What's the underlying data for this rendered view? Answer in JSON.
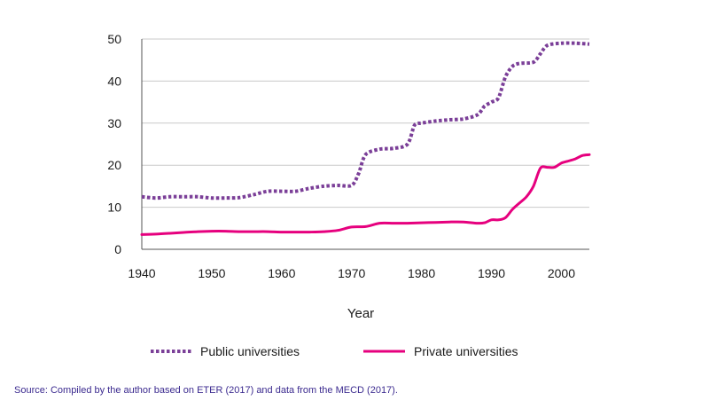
{
  "chart_data": {
    "type": "line",
    "title": "",
    "xlabel": "Year",
    "ylabel": "",
    "xlim": [
      1940,
      2004
    ],
    "ylim": [
      0,
      50
    ],
    "x_ticks": [
      1940,
      1950,
      1960,
      1970,
      1980,
      1990,
      2000
    ],
    "y_ticks": [
      0,
      10,
      20,
      30,
      40,
      50
    ],
    "grid": "horizontal",
    "legend_position": "bottom",
    "series": [
      {
        "name": "Public universities",
        "color": "#7b3f98",
        "style": "dotted",
        "x": [
          1940,
          1942,
          1944,
          1946,
          1948,
          1950,
          1952,
          1954,
          1956,
          1958,
          1960,
          1962,
          1964,
          1966,
          1968,
          1970,
          1971,
          1972,
          1974,
          1976,
          1978,
          1979,
          1980,
          1982,
          1984,
          1986,
          1988,
          1989,
          1990,
          1991,
          1992,
          1993,
          1994,
          1996,
          1997,
          1998,
          2000,
          2002,
          2004
        ],
        "values": [
          12.5,
          12.2,
          12.5,
          12.5,
          12.5,
          12.2,
          12.2,
          12.3,
          13.0,
          13.8,
          13.8,
          13.8,
          14.5,
          15.0,
          15.2,
          15.2,
          18,
          22.5,
          23.8,
          24.0,
          25.0,
          29.5,
          30.0,
          30.5,
          30.8,
          31.0,
          32.0,
          34.0,
          35.0,
          36.0,
          41.0,
          43.5,
          44.2,
          44.5,
          46.5,
          48.5,
          49.0,
          49.0,
          48.8
        ]
      },
      {
        "name": "Private universities",
        "color": "#e6007e",
        "style": "solid",
        "x": [
          1940,
          1942,
          1944,
          1946,
          1948,
          1950,
          1952,
          1954,
          1956,
          1958,
          1960,
          1962,
          1964,
          1966,
          1968,
          1970,
          1972,
          1974,
          1976,
          1978,
          1980,
          1982,
          1984,
          1986,
          1988,
          1989,
          1990,
          1991,
          1992,
          1993,
          1994,
          1995,
          1996,
          1997,
          1998,
          1999,
          2000,
          2001,
          2002,
          2003,
          2004
        ],
        "values": [
          3.5,
          3.6,
          3.8,
          4.0,
          4.2,
          4.3,
          4.3,
          4.2,
          4.2,
          4.2,
          4.1,
          4.1,
          4.1,
          4.2,
          4.5,
          5.3,
          5.4,
          6.2,
          6.2,
          6.2,
          6.3,
          6.4,
          6.5,
          6.5,
          6.2,
          6.3,
          7.0,
          7.0,
          7.5,
          9.5,
          11.0,
          12.5,
          15.0,
          19.3,
          19.5,
          19.5,
          20.5,
          21.0,
          21.5,
          22.3,
          22.5
        ]
      }
    ]
  },
  "source": "Source: Compiled by the author based on ETER (2017) and data from the MECD (2017)."
}
